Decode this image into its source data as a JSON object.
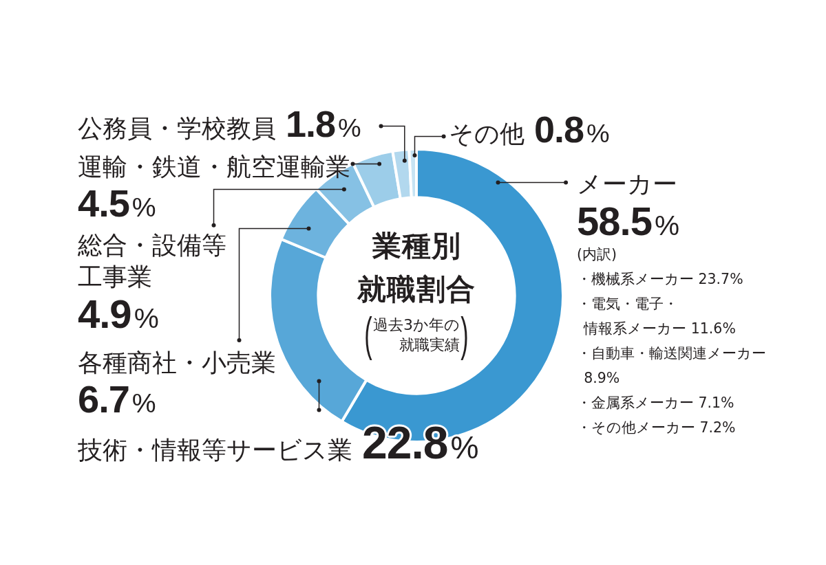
{
  "chart_data": {
    "type": "donut",
    "title": "業種別就職割合",
    "subtitle": "(過去3か年の就職実績)",
    "categories": [
      "メーカー",
      "技術・情報等サービス業",
      "各種商社・小売業",
      "総合・設備等工事業",
      "運輸・鉄道・航空運輸業",
      "公務員・学校教員",
      "その他"
    ],
    "values": [
      58.5,
      22.8,
      6.7,
      4.9,
      4.5,
      1.8,
      0.8
    ],
    "value_labels": [
      "58.5%",
      "22.8%",
      "6.7%",
      "4.9%",
      "4.5%",
      "1.8%",
      "0.8%"
    ],
    "colors": [
      "#3a98d1",
      "#57a7d8",
      "#6db3de",
      "#86c1e4",
      "#9ccde9",
      "#b2d8ee",
      "#c6e3f3"
    ],
    "annotations": [
      "(内訳)",
      "・機械系メーカー 23.7%",
      "・電気・電子・情報系メーカー 11.6%",
      "・自動車・輸送関連メーカー8.9%",
      "・金属系メーカー 7.1%",
      "・その他メーカー 7.2%"
    ]
  }
}
